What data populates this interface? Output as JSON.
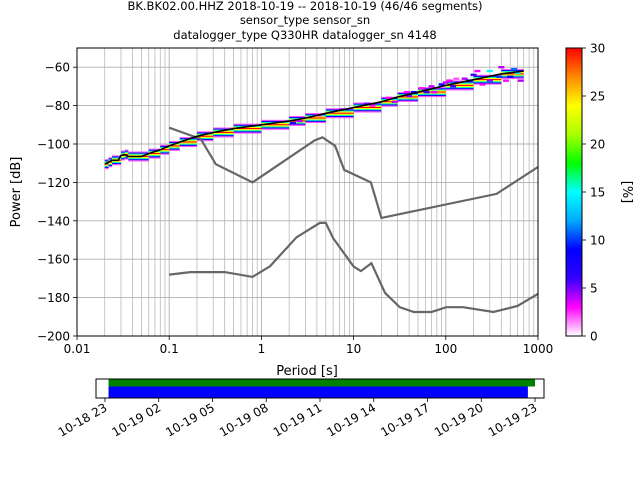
{
  "title_lines": [
    "BK.BK02.00.HHZ   2018-10-19 -- 2018-10-19  (46/46 segments)",
    "sensor_type  sensor_sn",
    "datalogger_type Q330HR datalogger_sn 4148"
  ],
  "chart_data": [
    {
      "type": "heatmap",
      "subtype": "probabilistic-power-spectral-density",
      "xlabel": "Period [s]",
      "ylabel": "Power [dB]",
      "xscale": "log",
      "xlim": [
        0.01,
        1000
      ],
      "ylim": [
        -200,
        -50
      ],
      "xticks": [
        {
          "v": 0.01,
          "label": "0.01"
        },
        {
          "v": 0.1,
          "label": "0.1"
        },
        {
          "v": 1,
          "label": "1"
        },
        {
          "v": 10,
          "label": "10"
        },
        {
          "v": 100,
          "label": "100"
        },
        {
          "v": 1000,
          "label": "1000"
        }
      ],
      "yticks": [
        -200,
        -180,
        -160,
        -140,
        -120,
        -100,
        -80,
        -60
      ],
      "grid": true,
      "colorbar": {
        "label": "[%]",
        "range": [
          0,
          30
        ],
        "ticks": [
          0,
          5,
          10,
          15,
          20,
          25,
          30
        ],
        "colormap": [
          "#ffffff",
          "#ff00ff",
          "#3300ff",
          "#0000ff",
          "#00aaff",
          "#00ffff",
          "#00ff00",
          "#aaff00",
          "#ffff00",
          "#ff8800",
          "#ff0000"
        ]
      },
      "mean_curve": {
        "color": "#000000",
        "points": [
          [
            0.02,
            -110.5
          ],
          [
            0.022,
            -109.5
          ],
          [
            0.024,
            -108.5
          ],
          [
            0.028,
            -108.5
          ],
          [
            0.03,
            -106
          ],
          [
            0.033,
            -105.5
          ],
          [
            0.036,
            -106.5
          ],
          [
            0.05,
            -106.5
          ],
          [
            0.06,
            -105
          ],
          [
            0.08,
            -103
          ],
          [
            0.1,
            -101
          ],
          [
            0.13,
            -99
          ],
          [
            0.2,
            -96
          ],
          [
            0.3,
            -94
          ],
          [
            0.5,
            -92
          ],
          [
            1,
            -90
          ],
          [
            2,
            -88
          ],
          [
            3,
            -86.5
          ],
          [
            5,
            -84
          ],
          [
            10,
            -81
          ],
          [
            20,
            -78
          ],
          [
            30,
            -75.5
          ],
          [
            50,
            -73
          ],
          [
            100,
            -69.5
          ],
          [
            200,
            -66.5
          ],
          [
            400,
            -63.5
          ],
          [
            700,
            -62
          ]
        ]
      },
      "psd_bins": [
        {
          "period": 2.2,
          "power": -89,
          "pct": 6
        },
        {
          "period": 2.6,
          "power": -88,
          "pct": 4
        },
        {
          "period": 4.2,
          "power": -85,
          "pct": 3
        },
        {
          "period": 7.5,
          "power": -82,
          "pct": 4
        },
        {
          "period": 14,
          "power": -79,
          "pct": 5
        },
        {
          "period": 16,
          "power": -80,
          "pct": 3
        },
        {
          "period": 24,
          "power": -76,
          "pct": 3
        },
        {
          "period": 28,
          "power": -78,
          "pct": 4
        },
        {
          "period": 38,
          "power": -73,
          "pct": 3
        },
        {
          "period": 40,
          "power": -75,
          "pct": 5
        },
        {
          "period": 45,
          "power": -73,
          "pct": 9
        },
        {
          "period": 55,
          "power": -71,
          "pct": 3
        },
        {
          "period": 60,
          "power": -72,
          "pct": 4
        },
        {
          "period": 62,
          "power": -73,
          "pct": 6
        },
        {
          "period": 70,
          "power": -70,
          "pct": 4
        },
        {
          "period": 75,
          "power": -73,
          "pct": 3
        },
        {
          "period": 80,
          "power": -71,
          "pct": 4
        },
        {
          "period": 90,
          "power": -69,
          "pct": 8
        },
        {
          "period": 100,
          "power": -68,
          "pct": 4
        },
        {
          "period": 110,
          "power": -67,
          "pct": 3
        },
        {
          "period": 120,
          "power": -70,
          "pct": 6
        },
        {
          "period": 130,
          "power": -66,
          "pct": 2
        },
        {
          "period": 160,
          "power": -66,
          "pct": 4
        },
        {
          "period": 180,
          "power": -67,
          "pct": 9
        },
        {
          "period": 200,
          "power": -64,
          "pct": 6
        },
        {
          "period": 220,
          "power": -62,
          "pct": 3
        },
        {
          "period": 250,
          "power": -69,
          "pct": 3
        },
        {
          "period": 300,
          "power": -67,
          "pct": 5
        },
        {
          "period": 300,
          "power": -62,
          "pct": 15
        },
        {
          "period": 380,
          "power": -65,
          "pct": 10
        },
        {
          "period": 400,
          "power": -60,
          "pct": 4
        },
        {
          "period": 450,
          "power": -67,
          "pct": 3
        },
        {
          "period": 500,
          "power": -65,
          "pct": 8
        },
        {
          "period": 550,
          "power": -61,
          "pct": 11
        },
        {
          "period": 600,
          "power": -63,
          "pct": 14
        },
        {
          "period": 650,
          "power": -67,
          "pct": 4
        }
      ],
      "noise_models": [
        {
          "name": "",
          "color": "#666666",
          "points": [
            [
              0.1,
              -91.5
            ],
            [
              0.22,
              -97.4
            ],
            [
              0.32,
              -110.5
            ],
            [
              0.8,
              -120
            ],
            [
              3.8,
              -98
            ],
            [
              4.6,
              -96.5
            ],
            [
              6.3,
              -101
            ],
            [
              7.9,
              -113.5
            ],
            [
              15.4,
              -120
            ],
            [
              20,
              -138.5
            ],
            [
              354.8,
              -126
            ],
            [
              1000,
              -112
            ]
          ]
        },
        {
          "name": "",
          "color": "#666666",
          "points": [
            [
              0.1,
              -168
            ],
            [
              0.17,
              -166.7
            ],
            [
              0.4,
              -166.7
            ],
            [
              0.8,
              -169.2
            ],
            [
              1.24,
              -163.7
            ],
            [
              2.4,
              -148.6
            ],
            [
              4.3,
              -141.1
            ],
            [
              5,
              -141.1
            ],
            [
              6,
              -149
            ],
            [
              10,
              -163.8
            ],
            [
              12,
              -166.2
            ],
            [
              15.6,
              -162.1
            ],
            [
              21.9,
              -177.5
            ],
            [
              31.6,
              -185
            ],
            [
              45,
              -187.5
            ],
            [
              70,
              -187.5
            ],
            [
              101,
              -185
            ],
            [
              154,
              -185
            ],
            [
              328,
              -187.5
            ],
            [
              600,
              -184.4
            ],
            [
              1000,
              -178
            ]
          ]
        }
      ]
    },
    {
      "type": "timeline",
      "subtype": "data-coverage",
      "xticks": [
        "10-18 23",
        "10-19 02",
        "10-19 05",
        "10-19 08",
        "10-19 11",
        "10-19 14",
        "10-19 17",
        "10-19 20",
        "10-19 23"
      ],
      "xlim_hours": [
        -0.5,
        24.5
      ],
      "bars": [
        {
          "color": "#008000",
          "start_hour": 0.2,
          "end_hour": 24.0
        },
        {
          "color": "#0000ff",
          "start_hour": 0.2,
          "end_hour": 23.6
        }
      ]
    }
  ]
}
